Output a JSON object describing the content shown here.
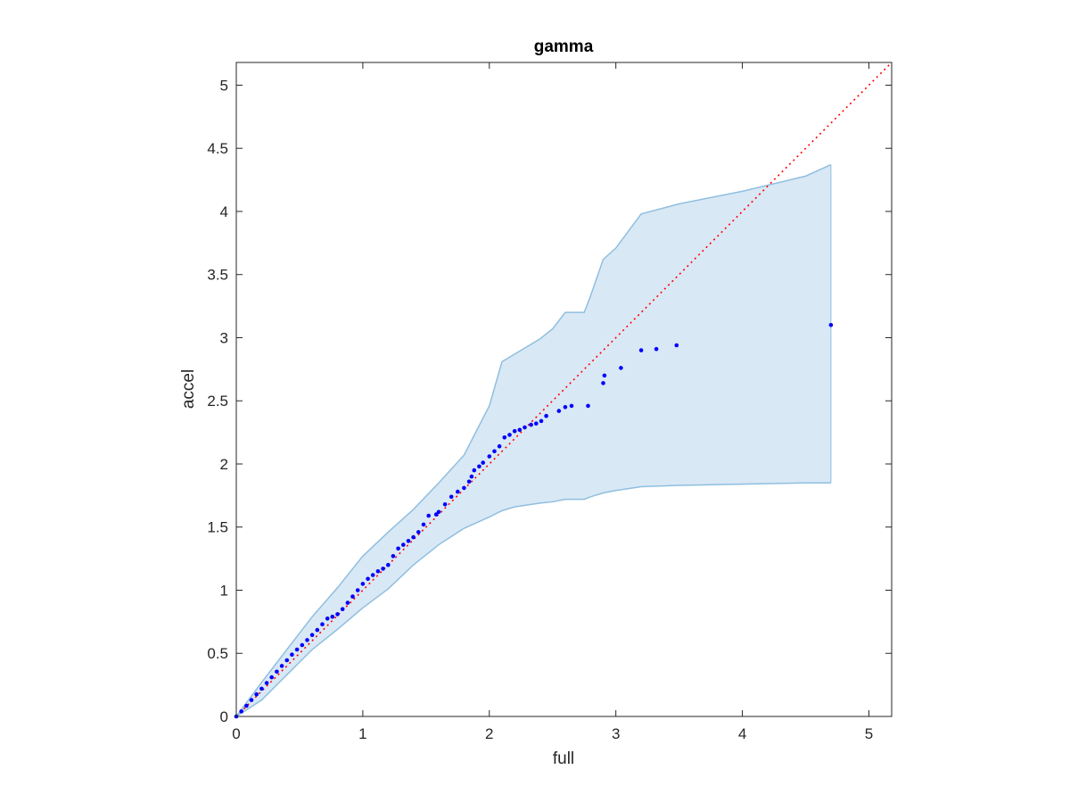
{
  "chart_data": {
    "type": "scatter",
    "title": "gamma",
    "xlabel": "full",
    "ylabel": "accel",
    "xlim": [
      0,
      5.18
    ],
    "ylim": [
      0,
      5.18
    ],
    "xticks": [
      0,
      1,
      2,
      3,
      4,
      5
    ],
    "yticks": [
      0,
      0.5,
      1,
      1.5,
      2,
      2.5,
      3,
      3.5,
      4,
      4.5,
      5
    ],
    "xtick_labels": [
      "0",
      "1",
      "2",
      "3",
      "4",
      "5"
    ],
    "ytick_labels": [
      "0",
      "0.5",
      "1",
      "1.5",
      "2",
      "2.5",
      "3",
      "3.5",
      "4",
      "4.5",
      "5"
    ],
    "grid": false,
    "colors": {
      "points": "#0000ff",
      "reference_line": "#ff0000",
      "band_fill": "#d9e8f5",
      "band_edge": "#8fbfdf",
      "axes": "#262626"
    },
    "reference_line": {
      "style": "dotted",
      "slope": 1,
      "intercept": 0
    },
    "band": {
      "x": [
        0,
        0.2,
        0.4,
        0.6,
        0.8,
        1.0,
        1.2,
        1.4,
        1.6,
        1.8,
        2.0,
        2.1,
        2.2,
        2.4,
        2.5,
        2.6,
        2.7,
        2.75,
        2.8,
        2.9,
        3.0,
        3.2,
        3.5,
        4.0,
        4.5,
        4.7
      ],
      "upper": [
        0,
        0.27,
        0.53,
        0.79,
        1.02,
        1.27,
        1.46,
        1.64,
        1.85,
        2.07,
        2.46,
        2.81,
        2.87,
        2.99,
        3.07,
        3.2,
        3.2,
        3.2,
        3.33,
        3.62,
        3.71,
        3.98,
        4.06,
        4.16,
        4.28,
        4.37
      ],
      "lower": [
        0,
        0.13,
        0.33,
        0.53,
        0.69,
        0.86,
        1.01,
        1.2,
        1.36,
        1.49,
        1.58,
        1.63,
        1.66,
        1.69,
        1.7,
        1.72,
        1.72,
        1.72,
        1.74,
        1.77,
        1.79,
        1.82,
        1.83,
        1.84,
        1.85,
        1.85
      ]
    },
    "points": {
      "x": [
        0,
        0.04,
        0.08,
        0.12,
        0.16,
        0.2,
        0.24,
        0.28,
        0.32,
        0.36,
        0.4,
        0.44,
        0.48,
        0.52,
        0.56,
        0.6,
        0.64,
        0.68,
        0.72,
        0.76,
        0.8,
        0.84,
        0.88,
        0.92,
        0.96,
        1.0,
        1.04,
        1.08,
        1.12,
        1.16,
        1.2,
        1.24,
        1.28,
        1.32,
        1.36,
        1.4,
        1.44,
        1.48,
        1.52,
        1.58,
        1.6,
        1.65,
        1.7,
        1.75,
        1.8,
        1.84,
        1.86,
        1.88,
        1.92,
        1.95,
        2.0,
        2.04,
        2.08,
        2.12,
        2.16,
        2.2,
        2.24,
        2.28,
        2.33,
        2.37,
        2.41,
        2.45,
        2.55,
        2.6,
        2.65,
        2.78,
        2.9,
        2.91,
        3.04,
        3.2,
        3.32,
        3.48,
        4.7
      ],
      "y": [
        0,
        0.04,
        0.085,
        0.13,
        0.175,
        0.22,
        0.265,
        0.31,
        0.355,
        0.4,
        0.445,
        0.49,
        0.53,
        0.565,
        0.605,
        0.645,
        0.685,
        0.73,
        0.775,
        0.79,
        0.81,
        0.85,
        0.9,
        0.95,
        1.0,
        1.05,
        1.09,
        1.12,
        1.15,
        1.17,
        1.2,
        1.27,
        1.33,
        1.36,
        1.39,
        1.42,
        1.46,
        1.52,
        1.59,
        1.6,
        1.62,
        1.68,
        1.74,
        1.78,
        1.81,
        1.86,
        1.9,
        1.95,
        1.98,
        2.01,
        2.06,
        2.1,
        2.14,
        2.21,
        2.23,
        2.26,
        2.27,
        2.29,
        2.31,
        2.32,
        2.34,
        2.38,
        2.42,
        2.45,
        2.46,
        2.46,
        2.64,
        2.7,
        2.76,
        2.9,
        2.91,
        2.94,
        3.1
      ]
    }
  }
}
